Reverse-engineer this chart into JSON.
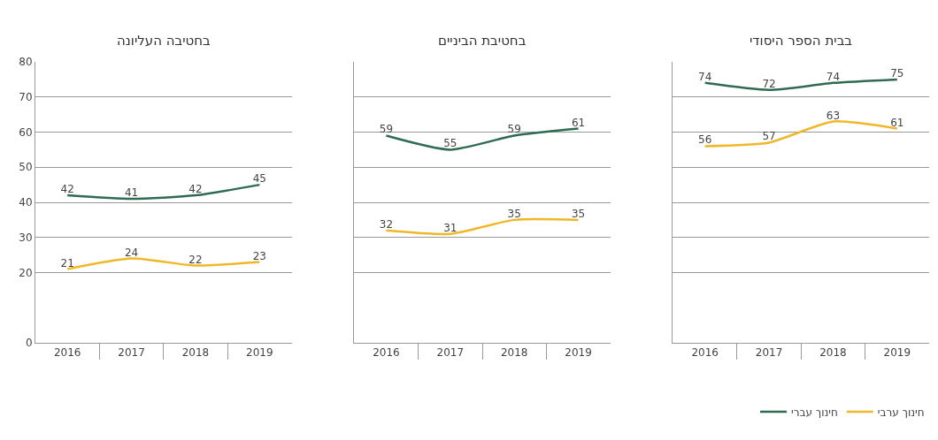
{
  "chart_data": [
    {
      "type": "line",
      "title": "בחטיבה העליונה",
      "categories": [
        "2016",
        "2017",
        "2018",
        "2019"
      ],
      "series": [
        {
          "name": "חינוך עברי",
          "color": "#2e6b50",
          "values": [
            42,
            41,
            42,
            45
          ]
        },
        {
          "name": "חינוך ערבי",
          "color": "#f0b828",
          "values": [
            21,
            24,
            22,
            23
          ]
        }
      ],
      "ylim": [
        0,
        80
      ],
      "yticks": [
        0,
        20,
        30,
        40,
        50,
        60,
        70,
        80
      ],
      "grid": "y",
      "data_labels": true,
      "marker": "none",
      "legend": "bottom right"
    },
    {
      "type": "line",
      "title": "בחטיבת הביניים",
      "categories": [
        "2016",
        "2017",
        "2018",
        "2019"
      ],
      "series": [
        {
          "color": "#2e6b50",
          "values": [
            59,
            55,
            59,
            61
          ]
        },
        {
          "color": "#f0b828",
          "values": [
            32,
            31,
            35,
            35
          ]
        }
      ],
      "ylim": [
        0,
        80
      ],
      "yticks": [
        0,
        20,
        30,
        40,
        50,
        60,
        70,
        80
      ],
      "grid": "y",
      "data_labels": true,
      "marker": "none",
      "tick_labels": "x"
    },
    {
      "type": "line",
      "title": "בבית הספר היסודי",
      "categories": [
        "2016",
        "2017",
        "2018",
        "2019"
      ],
      "series": [
        {
          "color": "#2e6b50",
          "values": [
            74,
            72,
            74,
            75
          ]
        },
        {
          "color": "#f0b828",
          "values": [
            56,
            57,
            63,
            61
          ]
        }
      ],
      "ylim": [
        0,
        80
      ],
      "yticks": [
        0,
        20,
        30,
        40,
        50,
        60,
        70,
        80
      ],
      "grid": "y",
      "data_labels": true,
      "marker": "none",
      "tick_labels": "x"
    }
  ]
}
